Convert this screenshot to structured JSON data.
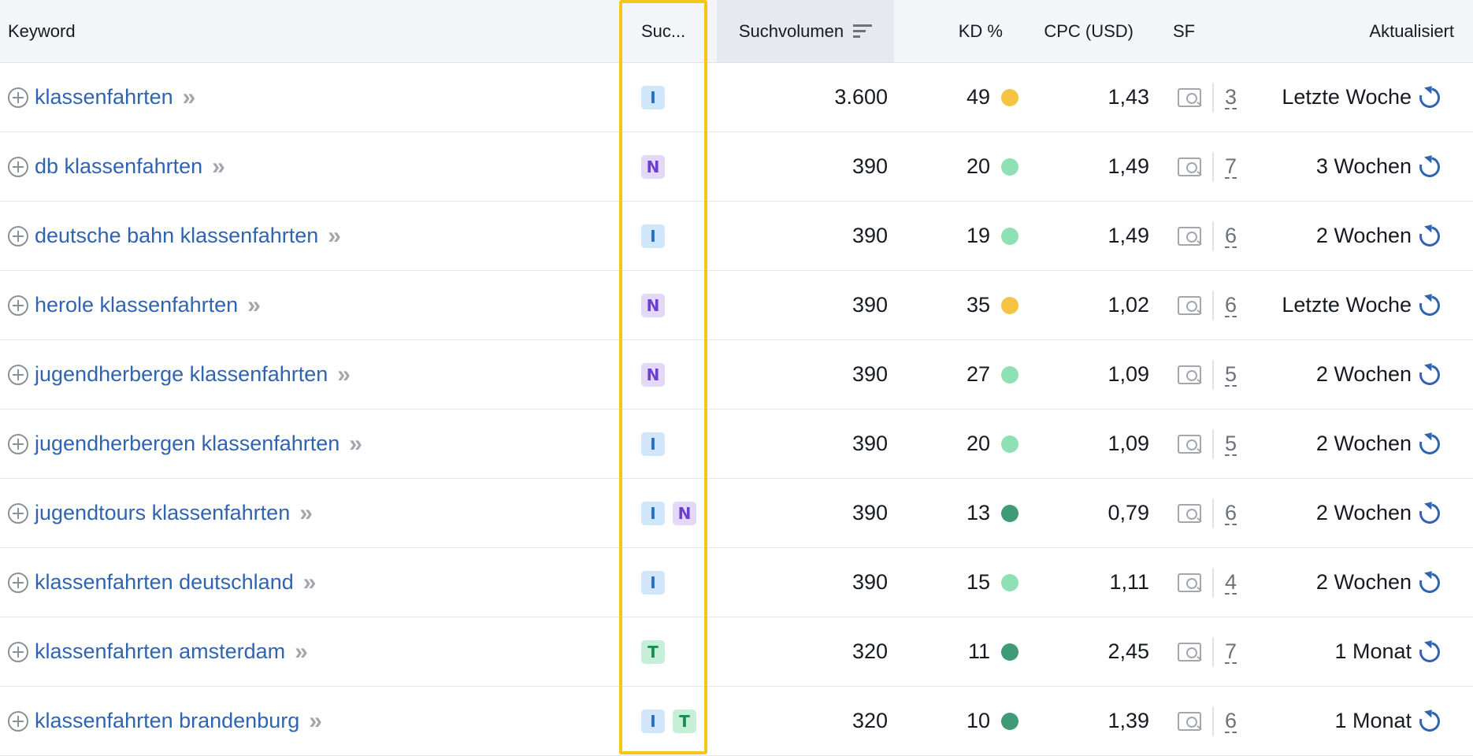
{
  "header": {
    "keyword": "Keyword",
    "intent": "Suc...",
    "volume": "Suchvolumen",
    "kd": "KD %",
    "cpc": "CPC (USD)",
    "sf": "SF",
    "updated": "Aktualisiert"
  },
  "colors": {
    "kd_yellow": "#f6c443",
    "kd_lightgreen": "#8fe0b5",
    "kd_darkgreen": "#3f9b76",
    "highlight": "#f5c518"
  },
  "rows": [
    {
      "keyword": "klassenfahrten",
      "intents": [
        "I"
      ],
      "volume": "3.600",
      "kd": "49",
      "kd_color": "#f6c443",
      "cpc": "1,43",
      "sf": "3",
      "updated": "Letzte Woche"
    },
    {
      "keyword": "db klassenfahrten",
      "intents": [
        "N"
      ],
      "volume": "390",
      "kd": "20",
      "kd_color": "#8fe0b5",
      "cpc": "1,49",
      "sf": "7",
      "updated": "3 Wochen"
    },
    {
      "keyword": "deutsche bahn klassenfahrten",
      "intents": [
        "I"
      ],
      "volume": "390",
      "kd": "19",
      "kd_color": "#8fe0b5",
      "cpc": "1,49",
      "sf": "6",
      "updated": "2 Wochen"
    },
    {
      "keyword": "herole klassenfahrten",
      "intents": [
        "N"
      ],
      "volume": "390",
      "kd": "35",
      "kd_color": "#f6c443",
      "cpc": "1,02",
      "sf": "6",
      "updated": "Letzte Woche"
    },
    {
      "keyword": "jugendherberge klassenfahrten",
      "intents": [
        "N"
      ],
      "volume": "390",
      "kd": "27",
      "kd_color": "#8fe0b5",
      "cpc": "1,09",
      "sf": "5",
      "updated": "2 Wochen"
    },
    {
      "keyword": "jugendherbergen klassenfahrten",
      "intents": [
        "I"
      ],
      "volume": "390",
      "kd": "20",
      "kd_color": "#8fe0b5",
      "cpc": "1,09",
      "sf": "5",
      "updated": "2 Wochen"
    },
    {
      "keyword": "jugendtours klassenfahrten",
      "intents": [
        "I",
        "N"
      ],
      "volume": "390",
      "kd": "13",
      "kd_color": "#3f9b76",
      "cpc": "0,79",
      "sf": "6",
      "updated": "2 Wochen"
    },
    {
      "keyword": "klassenfahrten deutschland",
      "intents": [
        "I"
      ],
      "volume": "390",
      "kd": "15",
      "kd_color": "#8fe0b5",
      "cpc": "1,11",
      "sf": "4",
      "updated": "2 Wochen"
    },
    {
      "keyword": "klassenfahrten amsterdam",
      "intents": [
        "T"
      ],
      "volume": "320",
      "kd": "11",
      "kd_color": "#3f9b76",
      "cpc": "2,45",
      "sf": "7",
      "updated": "1 Monat"
    },
    {
      "keyword": "klassenfahrten brandenburg",
      "intents": [
        "I",
        "T"
      ],
      "volume": "320",
      "kd": "10",
      "kd_color": "#3f9b76",
      "cpc": "1,39",
      "sf": "6",
      "updated": "1 Monat"
    }
  ]
}
